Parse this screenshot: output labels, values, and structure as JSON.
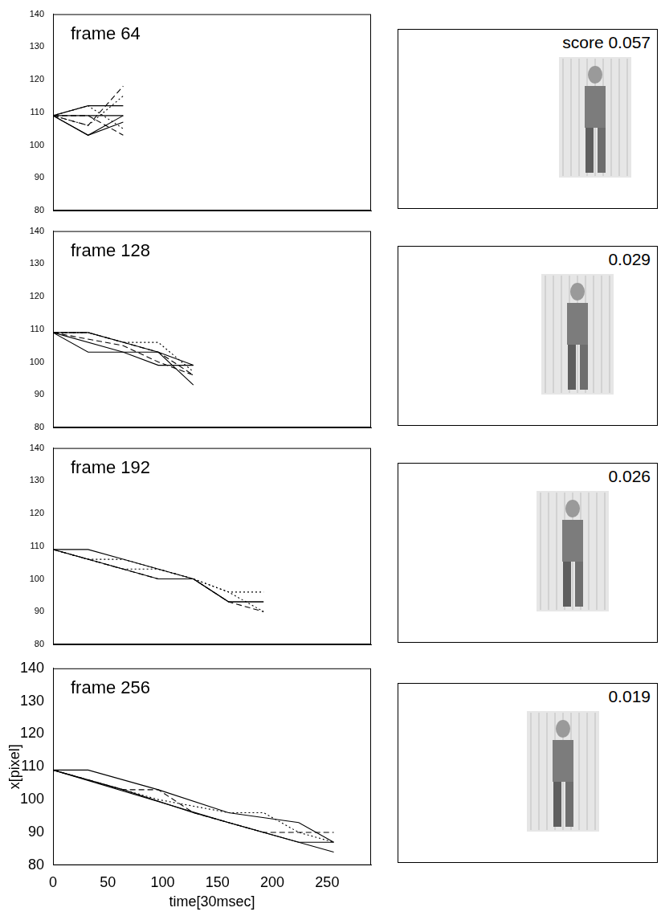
{
  "chart_data": [
    {
      "type": "line",
      "title": "frame 64",
      "xlim": [
        0,
        290
      ],
      "ylim": [
        80,
        140
      ],
      "xticks": [
        0,
        50,
        100,
        150,
        200,
        250
      ],
      "yticks": [
        80,
        90,
        100,
        110,
        120,
        130,
        140
      ],
      "grid": false,
      "tick_labels": "y",
      "series": [
        {
          "color": "#000000",
          "line_style": "solid",
          "x": [
            0,
            32,
            64
          ],
          "values": [
            109,
            112,
            112
          ]
        },
        {
          "color": "#000000",
          "line_style": "solid",
          "x": [
            0,
            32,
            64
          ],
          "values": [
            109,
            103,
            109
          ]
        },
        {
          "color": "#000000",
          "line_style": "solid",
          "x": [
            0,
            32,
            64
          ],
          "values": [
            109,
            109,
            109
          ]
        },
        {
          "color": "#000000",
          "line_style": "solid",
          "x": [
            0,
            32,
            64
          ],
          "values": [
            109,
            103,
            107
          ]
        },
        {
          "color": "#000000",
          "line_style": "dashed",
          "x": [
            0,
            32,
            64
          ],
          "values": [
            109,
            106,
            118
          ]
        },
        {
          "color": "#000000",
          "line_style": "dashed",
          "x": [
            0,
            32,
            64
          ],
          "values": [
            109,
            109,
            103
          ]
        },
        {
          "color": "#000000",
          "line_style": "dotted",
          "x": [
            0,
            32,
            64
          ],
          "values": [
            109,
            106,
            115
          ]
        },
        {
          "color": "#000000",
          "line_style": "dotted",
          "x": [
            0,
            32,
            64
          ],
          "values": [
            109,
            112,
            105
          ]
        }
      ]
    },
    {
      "type": "line",
      "title": "frame 128",
      "xlim": [
        0,
        290
      ],
      "ylim": [
        80,
        140
      ],
      "xticks": [
        0,
        50,
        100,
        150,
        200,
        250
      ],
      "yticks": [
        80,
        90,
        100,
        110,
        120,
        130,
        140
      ],
      "grid": false,
      "tick_labels": "y",
      "series": [
        {
          "color": "#000000",
          "line_style": "solid",
          "x": [
            0,
            32,
            64,
            96,
            128
          ],
          "values": [
            109,
            109,
            106,
            103,
            99
          ]
        },
        {
          "color": "#000000",
          "line_style": "solid",
          "x": [
            0,
            32,
            64,
            96,
            128
          ],
          "values": [
            109,
            103,
            103,
            99,
            99
          ]
        },
        {
          "color": "#000000",
          "line_style": "solid",
          "x": [
            0,
            64,
            96,
            128
          ],
          "values": [
            109,
            103,
            103,
            93
          ]
        },
        {
          "color": "#000000",
          "line_style": "dashed",
          "x": [
            0,
            32,
            64,
            96,
            128
          ],
          "values": [
            109,
            109,
            106,
            103,
            96
          ]
        },
        {
          "color": "#000000",
          "line_style": "dotted",
          "x": [
            0,
            32,
            64,
            96,
            128
          ],
          "values": [
            109,
            109,
            106,
            106,
            97
          ]
        },
        {
          "color": "#000000",
          "line_style": "dashed",
          "x": [
            0,
            64,
            96,
            128
          ],
          "values": [
            109,
            105,
            100,
            96
          ]
        }
      ]
    },
    {
      "type": "line",
      "title": "frame 192",
      "xlim": [
        0,
        290
      ],
      "ylim": [
        80,
        140
      ],
      "xticks": [
        0,
        50,
        100,
        150,
        200,
        250
      ],
      "yticks": [
        80,
        90,
        100,
        110,
        120,
        130,
        140
      ],
      "grid": false,
      "tick_labels": "y",
      "series": [
        {
          "color": "#000000",
          "line_style": "solid",
          "x": [
            0,
            32,
            64,
            96,
            128,
            160,
            192
          ],
          "values": [
            109,
            109,
            106,
            103,
            100,
            93,
            93
          ]
        },
        {
          "color": "#000000",
          "line_style": "solid",
          "x": [
            0,
            32,
            64,
            96,
            128,
            160,
            192
          ],
          "values": [
            109,
            106,
            103,
            100,
            100,
            93,
            93
          ]
        },
        {
          "color": "#000000",
          "line_style": "dotted",
          "x": [
            0,
            32,
            64,
            96,
            128,
            160,
            192
          ],
          "values": [
            109,
            106,
            106,
            103,
            100,
            96,
            96
          ]
        },
        {
          "color": "#000000",
          "line_style": "dotted",
          "x": [
            0,
            32,
            64,
            96,
            128,
            160,
            192
          ],
          "values": [
            109,
            106,
            103,
            103,
            100,
            96,
            90
          ]
        },
        {
          "color": "#000000",
          "line_style": "dashed",
          "x": [
            0,
            32,
            64,
            96,
            128,
            160,
            192
          ],
          "values": [
            109,
            106,
            103,
            100,
            100,
            93,
            90
          ]
        }
      ]
    },
    {
      "type": "line",
      "title": "frame 256",
      "x_label": "time[30msec]",
      "y_label": "x[pixel]",
      "xlim": [
        0,
        290
      ],
      "ylim": [
        80,
        140
      ],
      "xticks": [
        0,
        50,
        100,
        150,
        200,
        250
      ],
      "yticks": [
        80,
        90,
        100,
        110,
        120,
        130,
        140
      ],
      "grid": false,
      "series": [
        {
          "color": "#000000",
          "line_style": "solid",
          "x": [
            0,
            32,
            96,
            160,
            224,
            256
          ],
          "values": [
            109,
            109,
            103,
            96,
            93,
            87
          ]
        },
        {
          "color": "#000000",
          "line_style": "solid",
          "x": [
            0,
            64,
            128,
            192,
            224,
            256
          ],
          "values": [
            109,
            103,
            96,
            90,
            87,
            87
          ]
        },
        {
          "color": "#000000",
          "line_style": "solid",
          "x": [
            0,
            160,
            224,
            256
          ],
          "values": [
            109,
            93,
            87,
            84
          ]
        },
        {
          "color": "#000000",
          "line_style": "dashed",
          "x": [
            0,
            64,
            96,
            128,
            160,
            192,
            256
          ],
          "values": [
            109,
            103,
            103,
            96,
            93,
            90,
            90
          ]
        },
        {
          "color": "#000000",
          "line_style": "dotted",
          "x": [
            0,
            64,
            96,
            160,
            192,
            224,
            256
          ],
          "values": [
            109,
            103,
            100,
            96,
            96,
            90,
            87
          ]
        }
      ]
    }
  ],
  "image_panels": [
    {
      "label": "score 0.057"
    },
    {
      "label": "0.029"
    },
    {
      "label": "0.026"
    },
    {
      "label": "0.019"
    }
  ]
}
